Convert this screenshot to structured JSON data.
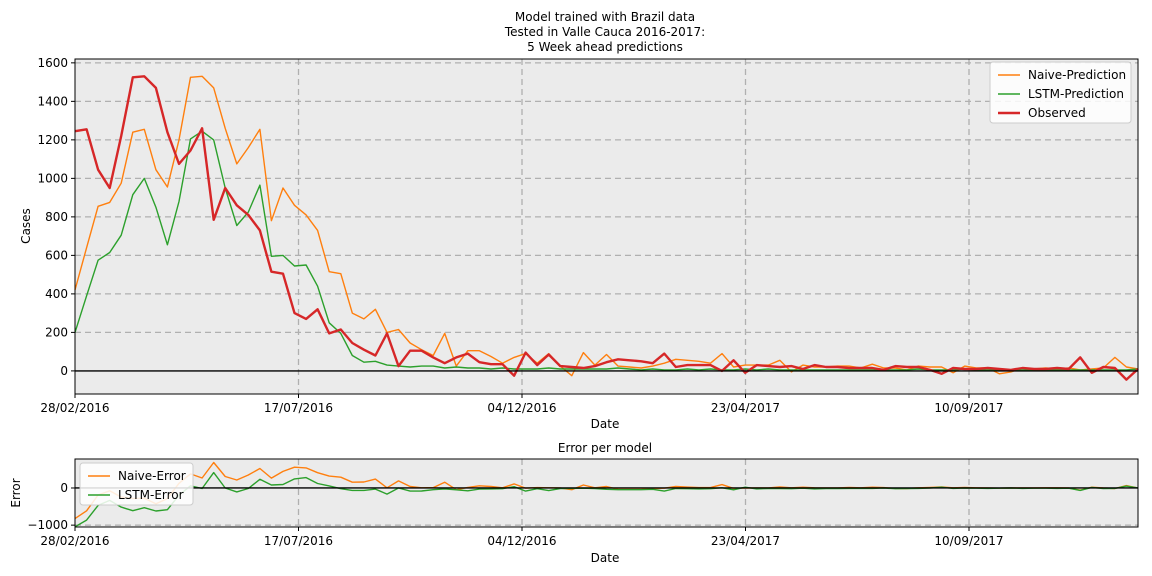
{
  "chart_data": [
    {
      "type": "line",
      "title": "Model trained with Brazil data",
      "subtitle_lines": [
        "Tested in Valle Cauca 2016-2017:",
        "5 Week ahead predictions"
      ],
      "xlabel": "Date",
      "ylabel": "Cases",
      "x_ticks": [
        "28/02/2016",
        "17/07/2016",
        "04/12/2016",
        "23/04/2017",
        "10/09/2017"
      ],
      "y_ticks": [
        "0",
        "200",
        "400",
        "600",
        "800",
        "1000",
        "1200",
        "1400",
        "1600"
      ],
      "ylim": [
        -120,
        1620
      ],
      "legend_position": "top-right",
      "grid": true,
      "series": [
        {
          "name": "Naive-Prediction",
          "color": "#ff7f0e",
          "values": [
            420,
            640,
            855,
            875,
            975,
            1240,
            1255,
            1045,
            955,
            1200,
            1525,
            1530,
            1470,
            1260,
            1075,
            1160,
            1255,
            780,
            950,
            860,
            810,
            730,
            515,
            505,
            300,
            270,
            320,
            200,
            215,
            145,
            110,
            80,
            195,
            25,
            105,
            105,
            75,
            40,
            70,
            90,
            40,
            90,
            25,
            -25,
            95,
            30,
            85,
            25,
            20,
            15,
            25,
            40,
            60,
            55,
            50,
            40,
            90,
            20,
            30,
            30,
            30,
            55,
            -5,
            30,
            20,
            20,
            25,
            25,
            15,
            35,
            15,
            15,
            5,
            25,
            20,
            20,
            -10,
            25,
            15,
            15,
            -15,
            -5,
            15,
            10,
            15,
            10,
            15,
            5,
            10,
            15,
            70,
            20,
            10
          ]
        },
        {
          "name": "LSTM-Prediction",
          "color": "#2ca02c",
          "values": [
            200,
            390,
            575,
            615,
            705,
            915,
            1000,
            850,
            655,
            880,
            1205,
            1245,
            1200,
            950,
            755,
            825,
            965,
            595,
            600,
            545,
            550,
            440,
            250,
            195,
            80,
            45,
            50,
            30,
            25,
            20,
            25,
            25,
            15,
            20,
            15,
            15,
            10,
            15,
            10,
            10,
            10,
            15,
            10,
            10,
            10,
            10,
            10,
            15,
            10,
            5,
            10,
            5,
            5,
            10,
            5,
            10,
            5,
            5,
            10,
            5,
            10,
            5,
            5,
            5,
            5,
            5,
            5,
            5,
            5,
            5,
            5,
            5,
            5,
            10,
            5,
            5,
            5,
            10,
            5,
            5,
            5,
            5,
            5,
            5,
            5,
            5,
            5,
            5,
            5,
            5,
            5,
            5,
            10
          ]
        },
        {
          "name": "Observed",
          "color": "#d62728",
          "values": [
            1245,
            1255,
            1045,
            950,
            1220,
            1525,
            1530,
            1470,
            1240,
            1075,
            1145,
            1260,
            785,
            950,
            860,
            810,
            730,
            515,
            505,
            300,
            270,
            320,
            195,
            215,
            145,
            110,
            80,
            195,
            25,
            105,
            105,
            70,
            40,
            70,
            90,
            45,
            35,
            35,
            -25,
            95,
            30,
            85,
            25,
            20,
            15,
            25,
            45,
            60,
            55,
            50,
            40,
            90,
            20,
            30,
            30,
            30,
            0,
            55,
            -10,
            30,
            25,
            20,
            25,
            10,
            30,
            20,
            20,
            15,
            15,
            15,
            5,
            25,
            20,
            20,
            5,
            -15,
            15,
            10,
            10,
            15,
            10,
            5,
            15,
            10,
            10,
            15,
            10,
            70,
            -10,
            20,
            15,
            -45,
            10
          ]
        }
      ]
    },
    {
      "type": "line",
      "title": "Error per model",
      "xlabel": "Date",
      "ylabel": "Error",
      "x_ticks": [
        "28/02/2016",
        "17/07/2016",
        "04/12/2016",
        "23/04/2017",
        "10/09/2017"
      ],
      "y_ticks": [
        "−1000",
        "0"
      ],
      "ylim": [
        -1050,
        780
      ],
      "legend_position": "top-left",
      "grid": true,
      "series": [
        {
          "name": "Naive-Error",
          "color": "#ff7f0e",
          "values": [
            -825,
            -615,
            -190,
            -75,
            -245,
            -285,
            -275,
            -425,
            -285,
            125,
            380,
            270,
            685,
            310,
            215,
            350,
            525,
            265,
            445,
            560,
            540,
            410,
            320,
            290,
            155,
            160,
            240,
            5,
            190,
            40,
            5,
            10,
            155,
            -45,
            15,
            60,
            40,
            5,
            110,
            -5,
            10,
            5,
            0,
            -45,
            80,
            5,
            40,
            -35,
            -35,
            -35,
            -15,
            -5,
            40,
            25,
            10,
            10,
            90,
            -10,
            0,
            0,
            0,
            30,
            5,
            20,
            5,
            0,
            0,
            15,
            5,
            20,
            10,
            -10,
            -15,
            5,
            15,
            30,
            5,
            15,
            5,
            0,
            -5,
            0,
            0,
            0,
            5,
            5,
            0,
            -60,
            20,
            0,
            -15,
            65,
            0
          ]
        },
        {
          "name": "LSTM-Error",
          "color": "#2ca02c",
          "values": [
            -1045,
            -865,
            -470,
            -335,
            -515,
            -610,
            -530,
            -620,
            -585,
            -195,
            60,
            -15,
            415,
            0,
            -105,
            -15,
            235,
            80,
            95,
            245,
            280,
            120,
            55,
            -20,
            -65,
            -65,
            -30,
            -165,
            0,
            -85,
            -80,
            -45,
            -25,
            -50,
            -75,
            -30,
            -25,
            -20,
            35,
            -85,
            -20,
            -70,
            -15,
            -10,
            -5,
            -15,
            -35,
            -45,
            -45,
            -45,
            -35,
            -85,
            -15,
            -20,
            -25,
            -20,
            5,
            -50,
            20,
            -25,
            -15,
            -15,
            -20,
            -5,
            -25,
            -15,
            -15,
            -10,
            -10,
            -10,
            0,
            -20,
            -15,
            -10,
            0,
            20,
            -10,
            0,
            -5,
            -10,
            -5,
            0,
            -10,
            -5,
            -5,
            -10,
            -5,
            -65,
            15,
            -15,
            -10,
            50,
            0
          ]
        }
      ]
    }
  ]
}
